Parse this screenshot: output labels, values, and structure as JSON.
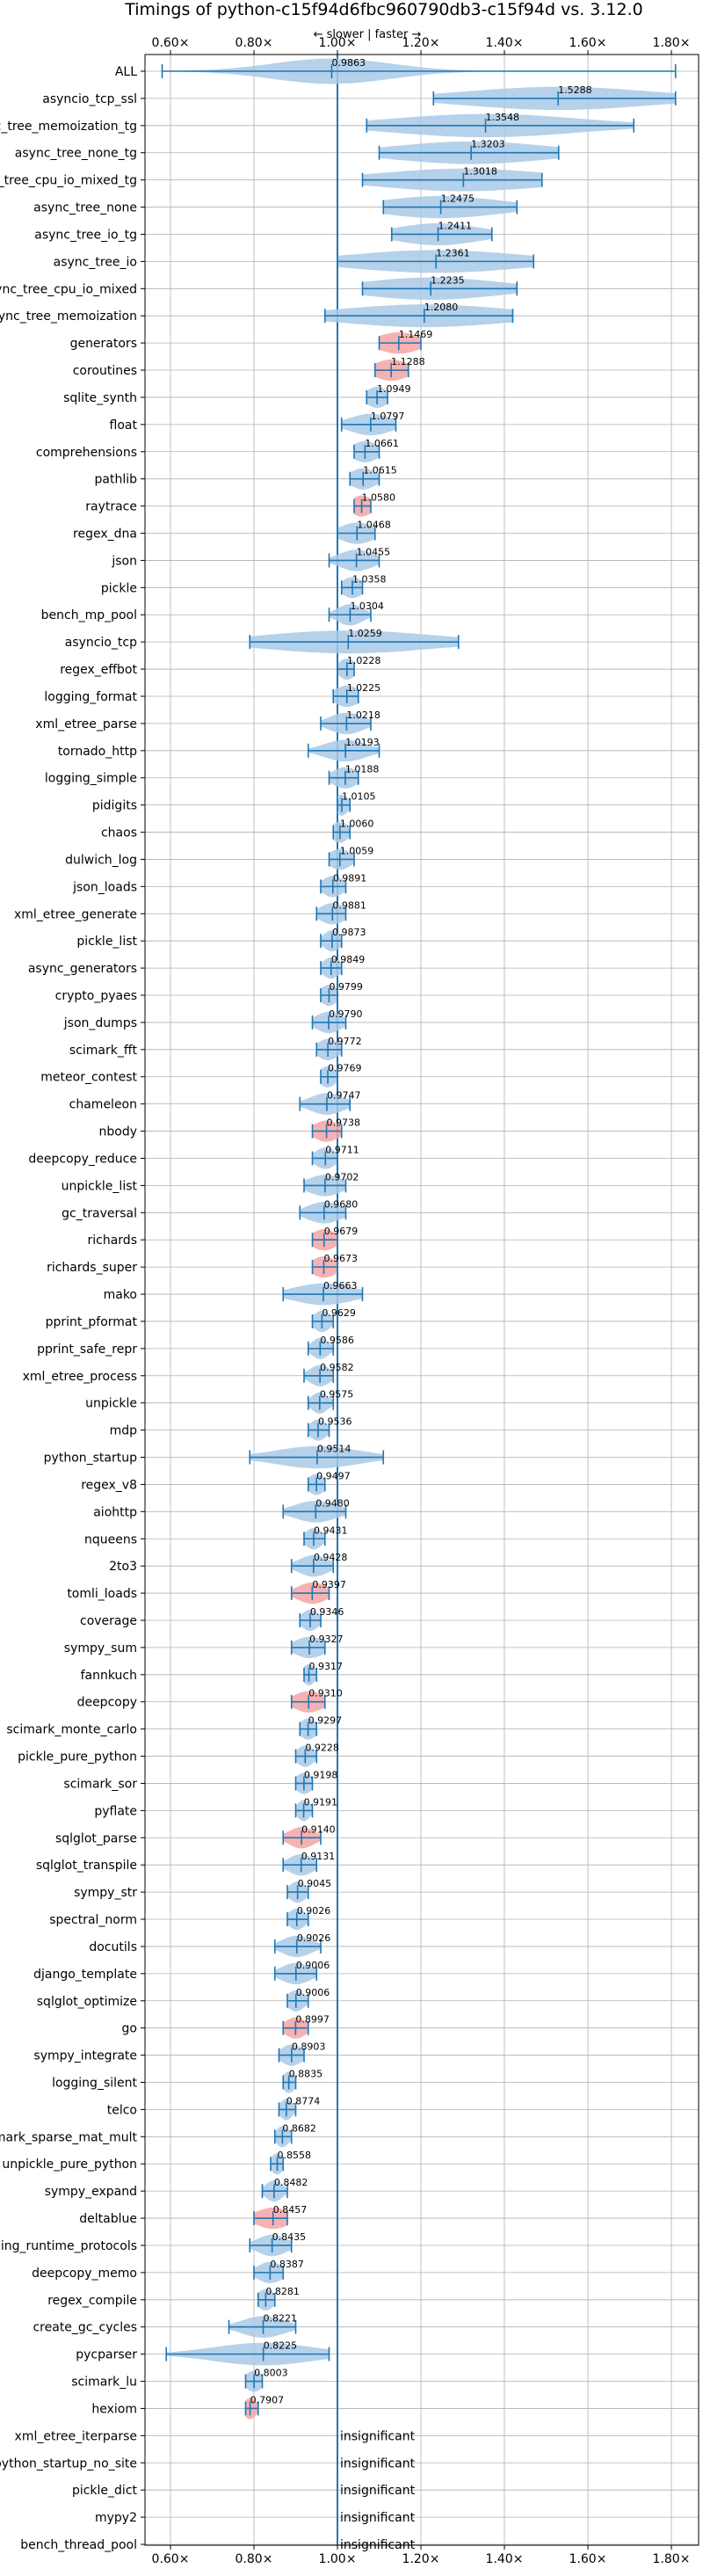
{
  "chart_data": {
    "type": "violin",
    "title": "Timings of python-c15f94d6fbc960790db3-c15f94d vs. 3.12.0",
    "subtitle": "← slower | faster →",
    "xlim": [
      0.55,
      1.85
    ],
    "xticks": [
      0.6,
      0.8,
      1.0,
      1.2,
      1.4,
      1.6,
      1.8
    ],
    "xtick_labels": [
      "0.60×",
      "0.80×",
      "1.00×",
      "1.20×",
      "1.40×",
      "1.60×",
      "1.80×"
    ],
    "reference_line": 1.0,
    "grid": true,
    "colors": {
      "faster": "#a9c9e6",
      "slower": "#f4a5a5",
      "line": "#1f77b4",
      "grid": "#b0b0b0"
    },
    "insignificant_label": "insignificant",
    "benchmarks": [
      {
        "name": "ALL",
        "value": 0.9863,
        "label": "0.9863",
        "min": 0.58,
        "max": 1.81,
        "spread": 0.14,
        "slower": false
      },
      {
        "name": "asyncio_tcp_ssl",
        "value": 1.5288,
        "label": "1.5288",
        "min": 1.23,
        "max": 1.81,
        "spread": 0.22,
        "slower": false
      },
      {
        "name": "async_tree_memoization_tg",
        "value": 1.3548,
        "label": "1.3548",
        "min": 1.07,
        "max": 1.71,
        "spread": 0.22,
        "slower": false
      },
      {
        "name": "async_tree_none_tg",
        "value": 1.3203,
        "label": "1.3203",
        "min": 1.1,
        "max": 1.53,
        "spread": 0.18,
        "slower": false
      },
      {
        "name": "async_tree_cpu_io_mixed_tg",
        "value": 1.3018,
        "label": "1.3018",
        "min": 1.06,
        "max": 1.49,
        "spread": 0.2,
        "slower": false
      },
      {
        "name": "async_tree_none",
        "value": 1.2475,
        "label": "1.2475",
        "min": 1.11,
        "max": 1.43,
        "spread": 0.14,
        "slower": false
      },
      {
        "name": "async_tree_io_tg",
        "value": 1.2411,
        "label": "1.2411",
        "min": 1.13,
        "max": 1.37,
        "spread": 0.1,
        "slower": false
      },
      {
        "name": "async_tree_io",
        "value": 1.2361,
        "label": "1.2361",
        "min": 1.0,
        "max": 1.47,
        "spread": 0.2,
        "slower": false
      },
      {
        "name": "async_tree_cpu_io_mixed",
        "value": 1.2235,
        "label": "1.2235",
        "min": 1.06,
        "max": 1.43,
        "spread": 0.16,
        "slower": false
      },
      {
        "name": "async_tree_memoization",
        "value": 1.208,
        "label": "1.2080",
        "min": 0.97,
        "max": 1.42,
        "spread": 0.2,
        "slower": false
      },
      {
        "name": "generators",
        "value": 1.1469,
        "label": "1.1469",
        "min": 1.1,
        "max": 1.2,
        "spread": 0.05,
        "slower": true
      },
      {
        "name": "coroutines",
        "value": 1.1288,
        "label": "1.1288",
        "min": 1.09,
        "max": 1.17,
        "spread": 0.04,
        "slower": true
      },
      {
        "name": "sqlite_synth",
        "value": 1.0949,
        "label": "1.0949",
        "min": 1.07,
        "max": 1.12,
        "spread": 0.025,
        "slower": false
      },
      {
        "name": "float",
        "value": 1.0797,
        "label": "1.0797",
        "min": 1.01,
        "max": 1.14,
        "spread": 0.05,
        "slower": false
      },
      {
        "name": "comprehensions",
        "value": 1.0661,
        "label": "1.0661",
        "min": 1.04,
        "max": 1.1,
        "spread": 0.03,
        "slower": false
      },
      {
        "name": "pathlib",
        "value": 1.0615,
        "label": "1.0615",
        "min": 1.03,
        "max": 1.1,
        "spread": 0.03,
        "slower": false
      },
      {
        "name": "raytrace",
        "value": 1.058,
        "label": "1.0580",
        "min": 1.04,
        "max": 1.08,
        "spread": 0.025,
        "slower": true
      },
      {
        "name": "regex_dna",
        "value": 1.0468,
        "label": "1.0468",
        "min": 1.0,
        "max": 1.09,
        "spread": 0.04,
        "slower": false
      },
      {
        "name": "json",
        "value": 1.0455,
        "label": "1.0455",
        "min": 0.98,
        "max": 1.1,
        "spread": 0.04,
        "slower": false
      },
      {
        "name": "pickle",
        "value": 1.0358,
        "label": "1.0358",
        "min": 1.01,
        "max": 1.06,
        "spread": 0.025,
        "slower": false
      },
      {
        "name": "bench_mp_pool",
        "value": 1.0304,
        "label": "1.0304",
        "min": 0.98,
        "max": 1.08,
        "spread": 0.03,
        "slower": false
      },
      {
        "name": "asyncio_tcp",
        "value": 1.0259,
        "label": "1.0259",
        "min": 0.79,
        "max": 1.29,
        "spread": 0.2,
        "slower": false
      },
      {
        "name": "regex_effbot",
        "value": 1.0228,
        "label": "1.0228",
        "min": 1.0,
        "max": 1.04,
        "spread": 0.02,
        "slower": false
      },
      {
        "name": "logging_format",
        "value": 1.0225,
        "label": "1.0225",
        "min": 0.99,
        "max": 1.05,
        "spread": 0.03,
        "slower": false
      },
      {
        "name": "xml_etree_parse",
        "value": 1.0218,
        "label": "1.0218",
        "min": 0.96,
        "max": 1.08,
        "spread": 0.04,
        "slower": false
      },
      {
        "name": "tornado_http",
        "value": 1.0193,
        "label": "1.0193",
        "min": 0.93,
        "max": 1.1,
        "spread": 0.05,
        "slower": false
      },
      {
        "name": "logging_simple",
        "value": 1.0188,
        "label": "1.0188",
        "min": 0.98,
        "max": 1.05,
        "spread": 0.03,
        "slower": false
      },
      {
        "name": "pidigits",
        "value": 1.0105,
        "label": "1.0105",
        "min": 1.0,
        "max": 1.03,
        "spread": 0.015,
        "slower": false
      },
      {
        "name": "chaos",
        "value": 1.006,
        "label": "1.0060",
        "min": 0.99,
        "max": 1.03,
        "spread": 0.02,
        "slower": false
      },
      {
        "name": "dulwich_log",
        "value": 1.0059,
        "label": "1.0059",
        "min": 0.98,
        "max": 1.04,
        "spread": 0.025,
        "slower": false
      },
      {
        "name": "json_loads",
        "value": 0.9891,
        "label": "0.9891",
        "min": 0.96,
        "max": 1.02,
        "spread": 0.025,
        "slower": false
      },
      {
        "name": "xml_etree_generate",
        "value": 0.9881,
        "label": "0.9881",
        "min": 0.95,
        "max": 1.02,
        "spread": 0.03,
        "slower": false
      },
      {
        "name": "pickle_list",
        "value": 0.9873,
        "label": "0.9873",
        "min": 0.96,
        "max": 1.01,
        "spread": 0.02,
        "slower": false
      },
      {
        "name": "async_generators",
        "value": 0.9849,
        "label": "0.9849",
        "min": 0.96,
        "max": 1.01,
        "spread": 0.02,
        "slower": false
      },
      {
        "name": "crypto_pyaes",
        "value": 0.9799,
        "label": "0.9799",
        "min": 0.96,
        "max": 1.0,
        "spread": 0.02,
        "slower": false
      },
      {
        "name": "json_dumps",
        "value": 0.979,
        "label": "0.9790",
        "min": 0.94,
        "max": 1.02,
        "spread": 0.03,
        "slower": false
      },
      {
        "name": "scimark_fft",
        "value": 0.9772,
        "label": "0.9772",
        "min": 0.95,
        "max": 1.01,
        "spread": 0.025,
        "slower": false
      },
      {
        "name": "meteor_contest",
        "value": 0.9769,
        "label": "0.9769",
        "min": 0.96,
        "max": 1.0,
        "spread": 0.02,
        "slower": false
      },
      {
        "name": "chameleon",
        "value": 0.9747,
        "label": "0.9747",
        "min": 0.91,
        "max": 1.03,
        "spread": 0.04,
        "slower": false
      },
      {
        "name": "nbody",
        "value": 0.9738,
        "label": "0.9738",
        "min": 0.94,
        "max": 1.01,
        "spread": 0.03,
        "slower": true
      },
      {
        "name": "deepcopy_reduce",
        "value": 0.9711,
        "label": "0.9711",
        "min": 0.94,
        "max": 1.0,
        "spread": 0.025,
        "slower": false
      },
      {
        "name": "unpickle_list",
        "value": 0.9702,
        "label": "0.9702",
        "min": 0.92,
        "max": 1.02,
        "spread": 0.04,
        "slower": false
      },
      {
        "name": "gc_traversal",
        "value": 0.968,
        "label": "0.9680",
        "min": 0.91,
        "max": 1.02,
        "spread": 0.04,
        "slower": false
      },
      {
        "name": "richards",
        "value": 0.9679,
        "label": "0.9679",
        "min": 0.94,
        "max": 1.0,
        "spread": 0.03,
        "slower": true
      },
      {
        "name": "richards_super",
        "value": 0.9673,
        "label": "0.9673",
        "min": 0.94,
        "max": 1.0,
        "spread": 0.03,
        "slower": true
      },
      {
        "name": "mako",
        "value": 0.9663,
        "label": "0.9663",
        "min": 0.87,
        "max": 1.06,
        "spread": 0.07,
        "slower": false
      },
      {
        "name": "pprint_pformat",
        "value": 0.9629,
        "label": "0.9629",
        "min": 0.94,
        "max": 0.99,
        "spread": 0.02,
        "slower": false
      },
      {
        "name": "pprint_safe_repr",
        "value": 0.9586,
        "label": "0.9586",
        "min": 0.93,
        "max": 0.99,
        "spread": 0.02,
        "slower": false
      },
      {
        "name": "xml_etree_process",
        "value": 0.9582,
        "label": "0.9582",
        "min": 0.92,
        "max": 0.99,
        "spread": 0.025,
        "slower": false
      },
      {
        "name": "unpickle",
        "value": 0.9575,
        "label": "0.9575",
        "min": 0.93,
        "max": 0.99,
        "spread": 0.02,
        "slower": false
      },
      {
        "name": "mdp",
        "value": 0.9536,
        "label": "0.9536",
        "min": 0.93,
        "max": 0.98,
        "spread": 0.02,
        "slower": false
      },
      {
        "name": "python_startup",
        "value": 0.9514,
        "label": "0.9514",
        "min": 0.79,
        "max": 1.11,
        "spread": 0.1,
        "slower": false
      },
      {
        "name": "regex_v8",
        "value": 0.9497,
        "label": "0.9497",
        "min": 0.93,
        "max": 0.97,
        "spread": 0.02,
        "slower": false
      },
      {
        "name": "aiohttp",
        "value": 0.948,
        "label": "0.9480",
        "min": 0.87,
        "max": 1.02,
        "spread": 0.05,
        "slower": false
      },
      {
        "name": "nqueens",
        "value": 0.9431,
        "label": "0.9431",
        "min": 0.92,
        "max": 0.97,
        "spread": 0.02,
        "slower": false
      },
      {
        "name": "2to3",
        "value": 0.9428,
        "label": "0.9428",
        "min": 0.89,
        "max": 0.99,
        "spread": 0.035,
        "slower": false
      },
      {
        "name": "tomli_loads",
        "value": 0.9397,
        "label": "0.9397",
        "min": 0.89,
        "max": 0.98,
        "spread": 0.035,
        "slower": true
      },
      {
        "name": "coverage",
        "value": 0.9346,
        "label": "0.9346",
        "min": 0.91,
        "max": 0.96,
        "spread": 0.02,
        "slower": false
      },
      {
        "name": "sympy_sum",
        "value": 0.9327,
        "label": "0.9327",
        "min": 0.89,
        "max": 0.97,
        "spread": 0.035,
        "slower": false
      },
      {
        "name": "fannkuch",
        "value": 0.9317,
        "label": "0.9317",
        "min": 0.92,
        "max": 0.95,
        "spread": 0.015,
        "slower": false
      },
      {
        "name": "deepcopy",
        "value": 0.931,
        "label": "0.9310",
        "min": 0.89,
        "max": 0.97,
        "spread": 0.035,
        "slower": true
      },
      {
        "name": "scimark_monte_carlo",
        "value": 0.9297,
        "label": "0.9297",
        "min": 0.91,
        "max": 0.95,
        "spread": 0.02,
        "slower": false
      },
      {
        "name": "pickle_pure_python",
        "value": 0.9228,
        "label": "0.9228",
        "min": 0.9,
        "max": 0.95,
        "spread": 0.02,
        "slower": false
      },
      {
        "name": "scimark_sor",
        "value": 0.9198,
        "label": "0.9198",
        "min": 0.9,
        "max": 0.94,
        "spread": 0.02,
        "slower": false
      },
      {
        "name": "pyflate",
        "value": 0.9191,
        "label": "0.9191",
        "min": 0.9,
        "max": 0.94,
        "spread": 0.015,
        "slower": false
      },
      {
        "name": "sqlglot_parse",
        "value": 0.914,
        "label": "0.9140",
        "min": 0.87,
        "max": 0.96,
        "spread": 0.03,
        "slower": true
      },
      {
        "name": "sqlglot_transpile",
        "value": 0.9131,
        "label": "0.9131",
        "min": 0.87,
        "max": 0.95,
        "spread": 0.03,
        "slower": false
      },
      {
        "name": "sympy_str",
        "value": 0.9045,
        "label": "0.9045",
        "min": 0.88,
        "max": 0.93,
        "spread": 0.02,
        "slower": false
      },
      {
        "name": "spectral_norm",
        "value": 0.9026,
        "label": "0.9026",
        "min": 0.88,
        "max": 0.93,
        "spread": 0.02,
        "slower": false
      },
      {
        "name": "docutils",
        "value": 0.9026,
        "label": "0.9026",
        "min": 0.85,
        "max": 0.96,
        "spread": 0.035,
        "slower": false
      },
      {
        "name": "django_template",
        "value": 0.9006,
        "label": "0.9006",
        "min": 0.85,
        "max": 0.95,
        "spread": 0.035,
        "slower": false
      },
      {
        "name": "sqlglot_optimize",
        "value": 0.9006,
        "label": "0.9006",
        "min": 0.88,
        "max": 0.93,
        "spread": 0.02,
        "slower": false
      },
      {
        "name": "go",
        "value": 0.8997,
        "label": "0.8997",
        "min": 0.87,
        "max": 0.93,
        "spread": 0.025,
        "slower": true
      },
      {
        "name": "sympy_integrate",
        "value": 0.8903,
        "label": "0.8903",
        "min": 0.86,
        "max": 0.92,
        "spread": 0.025,
        "slower": false
      },
      {
        "name": "logging_silent",
        "value": 0.8835,
        "label": "0.8835",
        "min": 0.87,
        "max": 0.9,
        "spread": 0.015,
        "slower": false
      },
      {
        "name": "telco",
        "value": 0.8774,
        "label": "0.8774",
        "min": 0.86,
        "max": 0.9,
        "spread": 0.015,
        "slower": false
      },
      {
        "name": "scimark_sparse_mat_mult",
        "value": 0.8682,
        "label": "0.8682",
        "min": 0.85,
        "max": 0.89,
        "spread": 0.015,
        "slower": false
      },
      {
        "name": "unpickle_pure_python",
        "value": 0.8558,
        "label": "0.8558",
        "min": 0.84,
        "max": 0.87,
        "spread": 0.015,
        "slower": false
      },
      {
        "name": "sympy_expand",
        "value": 0.8482,
        "label": "0.8482",
        "min": 0.82,
        "max": 0.88,
        "spread": 0.02,
        "slower": false
      },
      {
        "name": "deltablue",
        "value": 0.8457,
        "label": "0.8457",
        "min": 0.8,
        "max": 0.88,
        "spread": 0.04,
        "slower": true
      },
      {
        "name": "typing_runtime_protocols",
        "value": 0.8435,
        "label": "0.8435",
        "min": 0.79,
        "max": 0.89,
        "spread": 0.035,
        "slower": false
      },
      {
        "name": "deepcopy_memo",
        "value": 0.8387,
        "label": "0.8387",
        "min": 0.8,
        "max": 0.87,
        "spread": 0.03,
        "slower": false
      },
      {
        "name": "regex_compile",
        "value": 0.8281,
        "label": "0.8281",
        "min": 0.81,
        "max": 0.85,
        "spread": 0.02,
        "slower": false
      },
      {
        "name": "create_gc_cycles",
        "value": 0.8221,
        "label": "0.8221",
        "min": 0.74,
        "max": 0.9,
        "spread": 0.05,
        "slower": false
      },
      {
        "name": "pycparser",
        "value": 0.8225,
        "label": "0.8225",
        "min": 0.59,
        "max": 0.98,
        "spread": 0.12,
        "slower": false
      },
      {
        "name": "scimark_lu",
        "value": 0.8003,
        "label": "0.8003",
        "min": 0.78,
        "max": 0.82,
        "spread": 0.02,
        "slower": false
      },
      {
        "name": "hexiom",
        "value": 0.7907,
        "label": "0.7907",
        "min": 0.78,
        "max": 0.81,
        "spread": 0.015,
        "slower": true
      },
      {
        "name": "xml_etree_iterparse",
        "value": null,
        "label": "",
        "insignificant": true
      },
      {
        "name": "python_startup_no_site",
        "value": null,
        "label": "",
        "insignificant": true
      },
      {
        "name": "pickle_dict",
        "value": null,
        "label": "",
        "insignificant": true
      },
      {
        "name": "mypy2",
        "value": null,
        "label": "",
        "insignificant": true
      },
      {
        "name": "bench_thread_pool",
        "value": null,
        "label": "",
        "insignificant": true
      }
    ]
  }
}
